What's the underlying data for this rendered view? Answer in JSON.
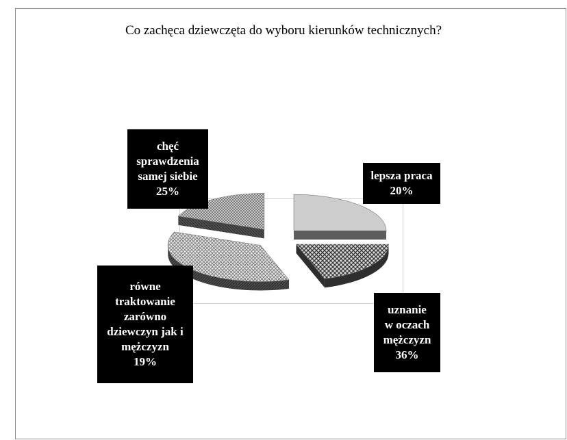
{
  "chart_data": {
    "type": "pie",
    "title": "Co zachęca dziewczęta do wyboru kierunków technicznych?",
    "categories": [
      "chęć sprawdzenia samej siebie",
      "lepsza praca",
      "uznanie w oczach mężczyzn",
      "równe traktowanie zarówno dziewczyn jak i mężczyzn"
    ],
    "values": [
      25,
      20,
      36,
      19
    ],
    "data_labels": [
      [
        "chęć",
        "sprawdzenia",
        "samej siebie",
        "25%"
      ],
      [
        "lepsza praca",
        "20%"
      ],
      [
        "uznanie",
        "w oczach",
        "mężczyzn",
        "36%"
      ],
      [
        "równe",
        "traktowanie",
        "zarówno",
        "dziewczyn jak i",
        "mężczyzn",
        "19%"
      ]
    ],
    "style": "3d-exploded",
    "legend": "none",
    "colors": {
      "slice0_top": "#c8c8c8",
      "slice0_side": "#5c5c5c",
      "slice1_top": "#8a8a8a",
      "slice1_side": "#2e2e2e",
      "slice2_top": "#b4b4b4",
      "slice2_side": "#4a4a4a",
      "slice3_top": "#9a9a9a",
      "slice3_side": "#3a3a3a"
    }
  }
}
